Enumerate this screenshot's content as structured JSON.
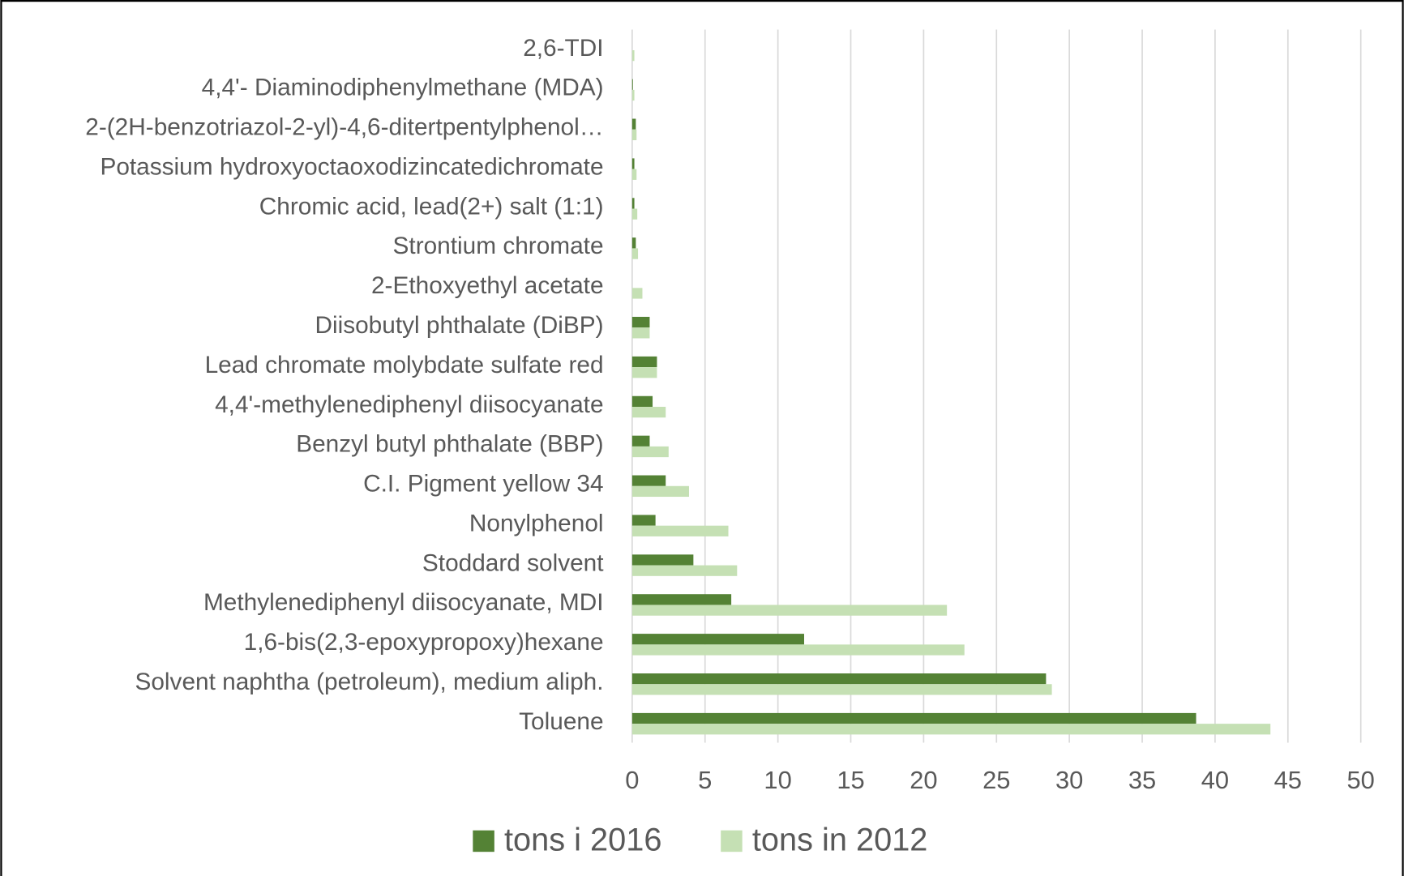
{
  "chart_data": {
    "type": "bar",
    "orientation": "horizontal",
    "categories": [
      "2,6-TDI",
      "4,4'- Diaminodiphenylmethane (MDA)",
      "2-(2H-benzotriazol-2-yl)-4,6-ditertpentylphenol…",
      "Potassium hydroxyoctaoxodizincatedichromate",
      "Chromic acid, lead(2+) salt (1:1)",
      "Strontium chromate",
      "2-Ethoxyethyl acetate",
      "Diisobutyl phthalate (DiBP)",
      "Lead chromate molybdate sulfate red",
      "4,4'-methylenediphenyl diisocyanate",
      "Benzyl butyl phthalate (BBP)",
      "C.I. Pigment yellow 34",
      "Nonylphenol",
      "Stoddard solvent",
      "Methylenediphenyl diisocyanate, MDI",
      "1,6-bis(2,3-epoxypropoxy)hexane",
      "Solvent naphtha (petroleum), medium aliph.",
      "Toluene"
    ],
    "series": [
      {
        "name": "tons i 2016",
        "color": "#548235",
        "values": [
          0,
          0.05,
          0.25,
          0.15,
          0.15,
          0.25,
          0,
          1.2,
          1.7,
          1.4,
          1.2,
          2.3,
          1.6,
          4.2,
          6.8,
          11.8,
          28.4,
          38.7
        ]
      },
      {
        "name": "tons in 2012",
        "color": "#c5e0b4",
        "values": [
          0.15,
          0.15,
          0.3,
          0.3,
          0.35,
          0.4,
          0.7,
          1.2,
          1.7,
          2.3,
          2.5,
          3.9,
          6.6,
          7.2,
          21.6,
          22.8,
          28.8,
          43.8
        ]
      }
    ],
    "xlim": [
      0,
      50
    ],
    "xticks": [
      0,
      5,
      10,
      15,
      20,
      25,
      30,
      35,
      40,
      45,
      50
    ],
    "grid": true,
    "legend": "bottom"
  }
}
